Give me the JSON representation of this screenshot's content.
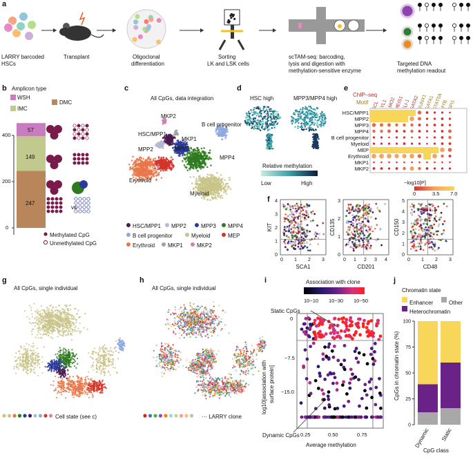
{
  "panels": {
    "a": "a",
    "b": "b",
    "c": "c",
    "d": "d",
    "e": "e",
    "f": "f",
    "g": "g",
    "h": "h",
    "i": "i",
    "j": "j"
  },
  "a": {
    "step1": "LARRY barcoded",
    "step1b": "HSCs",
    "step2": "Transplant",
    "step3": "Oligoclonal",
    "step3b": "differentiation",
    "step4": "Sorting",
    "step4b": "LK and LSK cells",
    "step5": "scTAM-seq: barcoding,",
    "step5b": "lysis and digestion with",
    "step5c": "methylation-sensitive enzyme",
    "step6": "Targeted DNA",
    "step6b": "methylation readout"
  },
  "b": {
    "legend_title": "Amplicon type",
    "legend": [
      "WSH",
      "DMC",
      "IMC"
    ],
    "colors": {
      "WSH": "#c77dbf",
      "DMC": "#b8865a",
      "IMC": "#c2c98e"
    },
    "values": {
      "IMC": 247,
      "DMC": 149,
      "WSH": 57
    },
    "y_ticks": [
      "0",
      "200",
      "400"
    ],
    "vs": "vs",
    "meth_label": "Methylated CpG",
    "unmeth_label": "Unmethylated CpG"
  },
  "c": {
    "title": "All CpGs, data integration",
    "labels": [
      "MKP2",
      "HSC/MPP1",
      "B cell progenitor",
      "MPP2",
      "MKP1",
      "MPP3",
      "MPP4",
      "MEP",
      "Erythroid",
      "Myeloid"
    ],
    "legend": [
      "HSC/MPP1",
      "MPP2",
      "MPP3",
      "MPP4",
      "B cell progenitor",
      "Myeloid",
      "MEP",
      "Erythroid",
      "MKP1",
      "MKP2"
    ],
    "legend_colors": {
      "HSC/MPP1": "#4b1b52",
      "MPP2": "#b6b6d8",
      "MPP3": "#2a3a9a",
      "MPP4": "#2e7a1f",
      "B cell progenitor": "#8ea8e0",
      "Myeloid": "#c9c48a",
      "MEP": "#d0362a",
      "Erythroid": "#e8774a",
      "MKP1": "#a0a0a0",
      "MKP2": "#d37fb0"
    }
  },
  "d": {
    "title1": "HSC high",
    "title2": "MPP3/MPP4 high",
    "colorbar_title": "Relative methylation",
    "low": "Low",
    "high": "High"
  },
  "e": {
    "chip_label": "ChIP–seq",
    "motif_label": "Motif",
    "columns": [
      "SCL",
      "LYL1",
      "LMO2",
      "MEIS1",
      "FLI-1",
      "GATA2",
      "RUNX1",
      "GATA1",
      "STAT5A",
      "MYB",
      "SPI1"
    ],
    "rows": [
      "HSC/MPP1",
      "MPP2",
      "MPP3",
      "MPP4",
      "B cell progenitor",
      "Myeloid",
      "MEP",
      "Erythroid",
      "MKP1",
      "MKP2"
    ],
    "scale_label": "−log10[P]",
    "scale_ticks": [
      "0",
      "3.5",
      "7.0"
    ]
  },
  "f": {
    "plot1": {
      "xlabel": "SCA1",
      "ylabel": "KIT",
      "xticks": [
        "0",
        "1",
        "2",
        "3"
      ],
      "yticks": [
        "0",
        "1",
        "2",
        "3",
        "4"
      ]
    },
    "plot2": {
      "xlabel": "CD201",
      "ylabel": "CD135",
      "xticks": [
        "0",
        "1",
        "2",
        "3",
        "4"
      ],
      "yticks": [
        "0",
        "1",
        "2",
        "3"
      ]
    },
    "plot3": {
      "xlabel": "CD48",
      "ylabel": "CD150",
      "xticks": [
        "0",
        "1",
        "2",
        "3"
      ],
      "yticks": [
        "0",
        "1",
        "2",
        "3",
        "4",
        "5"
      ]
    }
  },
  "g": {
    "title": "All CpGs, single individual",
    "legend": "Cell state (see c)"
  },
  "h": {
    "title": "All CpGs, single individual",
    "legend": "··· LARRY clone"
  },
  "i": {
    "colorbar_title": "Association with clone",
    "ticks": [
      "10−10",
      "10−30",
      "10−50"
    ],
    "static_label": "Static CpGs",
    "dynamic_label": "Dynamic CpGs",
    "ylabel1": "log10[association with",
    "ylabel2": "surface protein]",
    "xlabel": "Average methylation",
    "yticks": [
      "−7.5",
      "−15.0"
    ],
    "xticks": [
      "0.25",
      "0.50",
      "0.75"
    ]
  },
  "j": {
    "legend_title": "Chromatin state",
    "legend": [
      "Enhancer",
      "Other",
      "Heterochromatin"
    ],
    "colors": {
      "Enhancer": "#f7d65a",
      "Other": "#a8a8a8",
      "Heterochromatin": "#6a2289"
    },
    "ylabel": "CpGs in chromatin state (%)",
    "xlabel": "CpG class",
    "yticks": [
      "0",
      "25",
      "50",
      "75",
      "100"
    ],
    "chart_data": {
      "type": "bar",
      "categories": [
        "Dynamic",
        "Static"
      ],
      "series": [
        {
          "name": "Other",
          "values": [
            12,
            16
          ]
        },
        {
          "name": "Heterochromatin",
          "values": [
            27,
            44
          ]
        },
        {
          "name": "Enhancer",
          "values": [
            61,
            40
          ]
        }
      ],
      "ylim": [
        0,
        100
      ]
    }
  }
}
